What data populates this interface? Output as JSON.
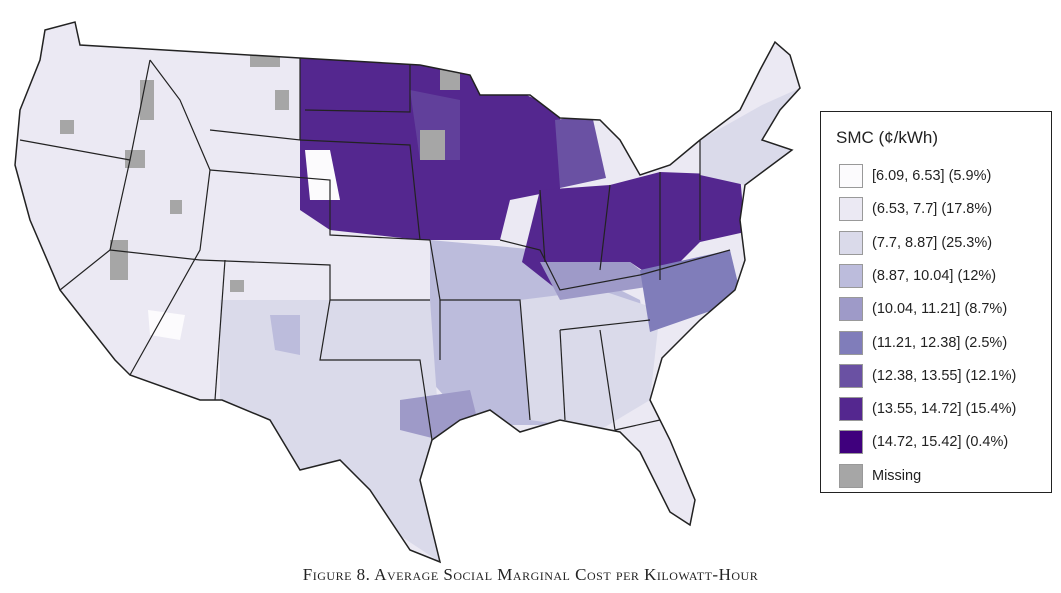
{
  "figure_caption": "Figure 8. Average Social Marginal Cost per Kilowatt-Hour",
  "legend": {
    "title": "SMC (¢/kWh)",
    "items": [
      {
        "label": "[6.09, 6.53] (5.9%)",
        "color": "#fcfbfd"
      },
      {
        "label": "(6.53, 7.7] (17.8%)",
        "color": "#ebe9f3"
      },
      {
        "label": "(7.7, 8.87] (25.3%)",
        "color": "#dadaea"
      },
      {
        "label": "(8.87, 10.04] (12%)",
        "color": "#bcbcdc"
      },
      {
        "label": "(10.04, 11.21] (8.7%)",
        "color": "#9e9ac8"
      },
      {
        "label": "(11.21, 12.38] (2.5%)",
        "color": "#807dba"
      },
      {
        "label": "(12.38, 13.55] (12.1%)",
        "color": "#6a51a3"
      },
      {
        "label": "(13.55, 14.72] (15.4%)",
        "color": "#54278f"
      },
      {
        "label": "(14.72, 15.42] (0.4%)",
        "color": "#3f007d"
      },
      {
        "label": "Missing",
        "color": "#a6a6a6"
      }
    ]
  }
}
